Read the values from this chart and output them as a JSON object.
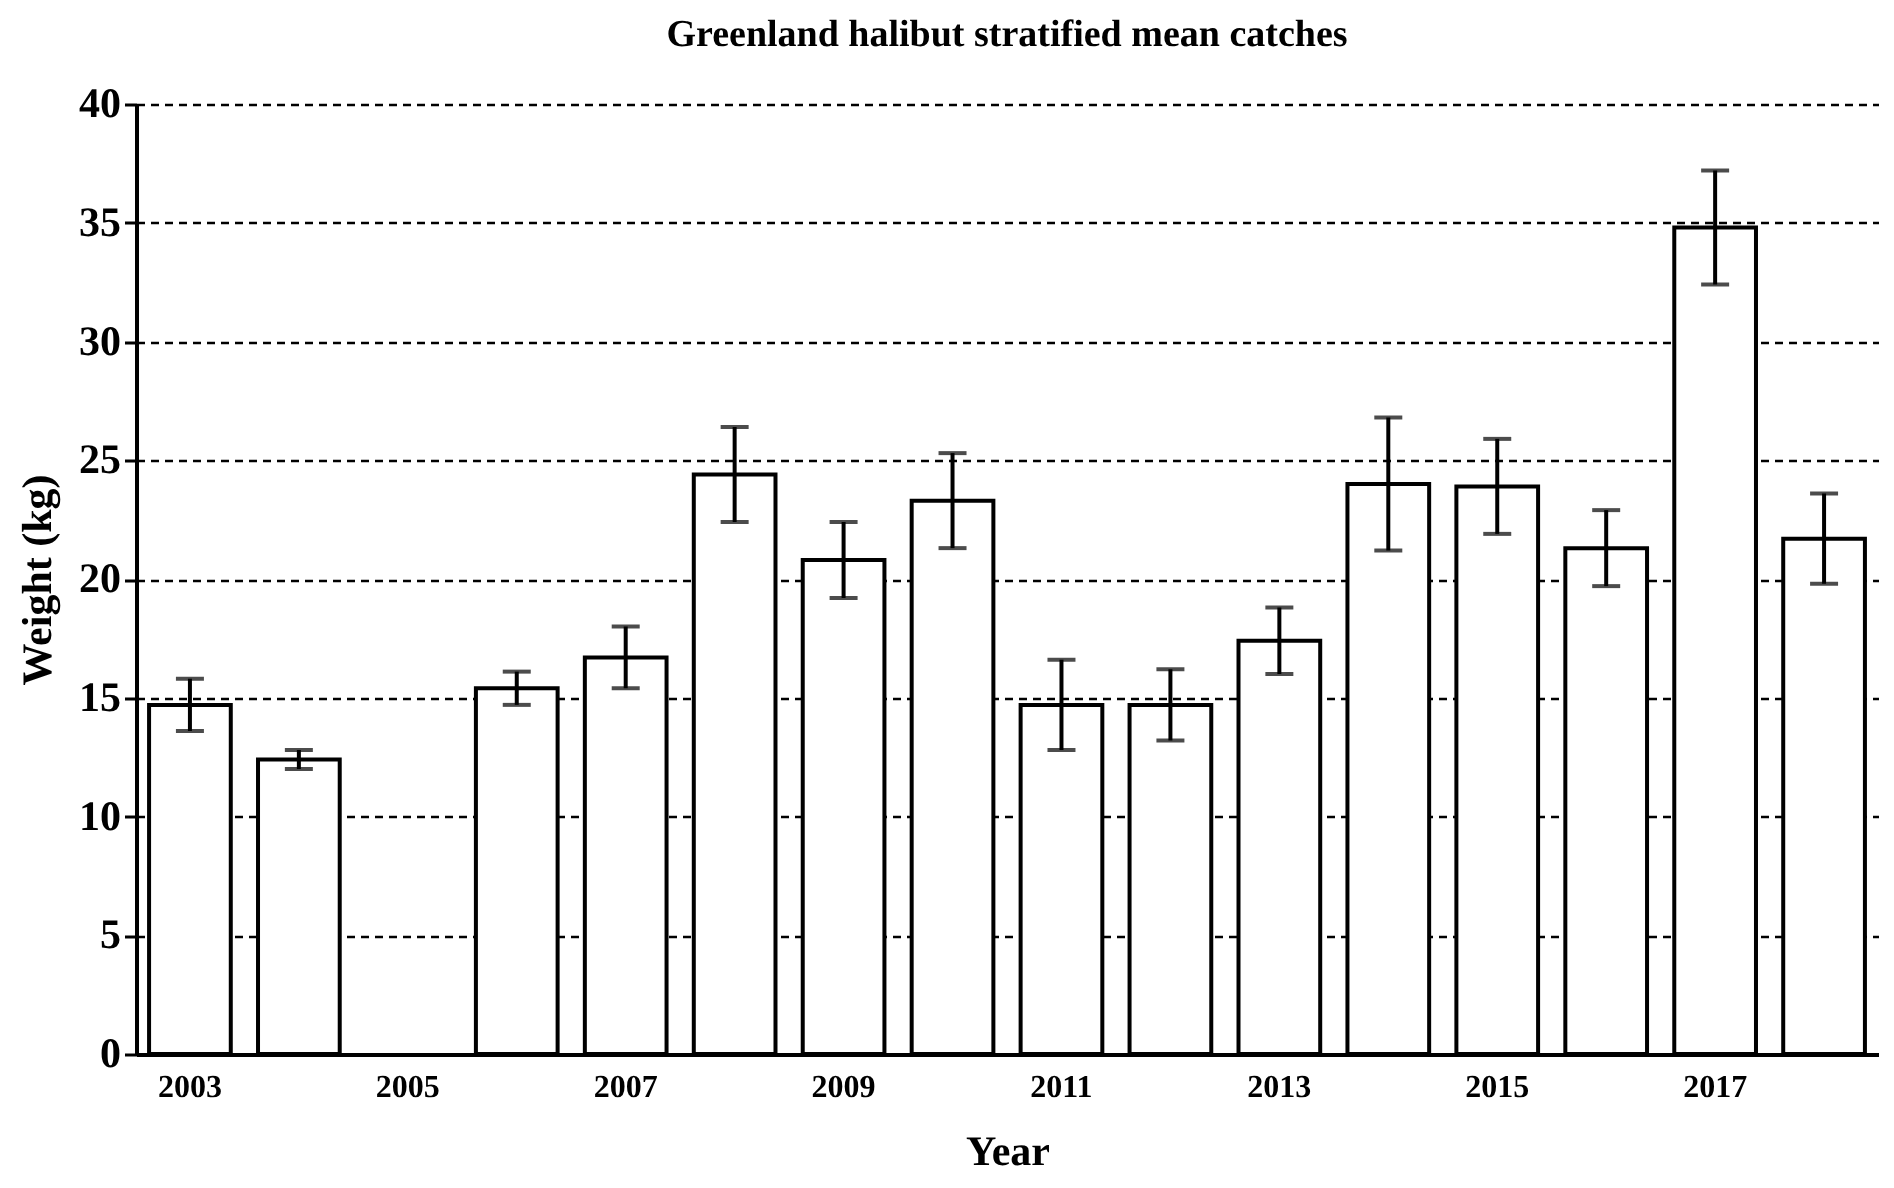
{
  "chart_data": {
    "type": "bar",
    "title": "Greenland halibut stratified mean catches",
    "xlabel": "Year",
    "ylabel": "Weight (kg)",
    "categories": [
      "2003",
      null,
      "2005",
      null,
      "2007",
      null,
      "2009",
      null,
      "2011",
      null,
      "2013",
      null,
      "2015",
      null,
      "2017",
      null
    ],
    "values": [
      14.7,
      12.4,
      null,
      15.4,
      16.7,
      24.4,
      20.8,
      23.3,
      14.7,
      14.7,
      17.4,
      24.0,
      23.9,
      21.3,
      34.8,
      21.7
    ],
    "errors": [
      1.1,
      0.4,
      null,
      0.7,
      1.3,
      2.0,
      1.6,
      2.0,
      1.9,
      1.5,
      1.4,
      2.8,
      2.0,
      1.6,
      2.4,
      1.9
    ],
    "color": "#ffffff",
    "ylim": [
      0,
      40
    ],
    "yticks": [
      0,
      5,
      10,
      15,
      20,
      25,
      30,
      35,
      40
    ],
    "grid": "y"
  }
}
